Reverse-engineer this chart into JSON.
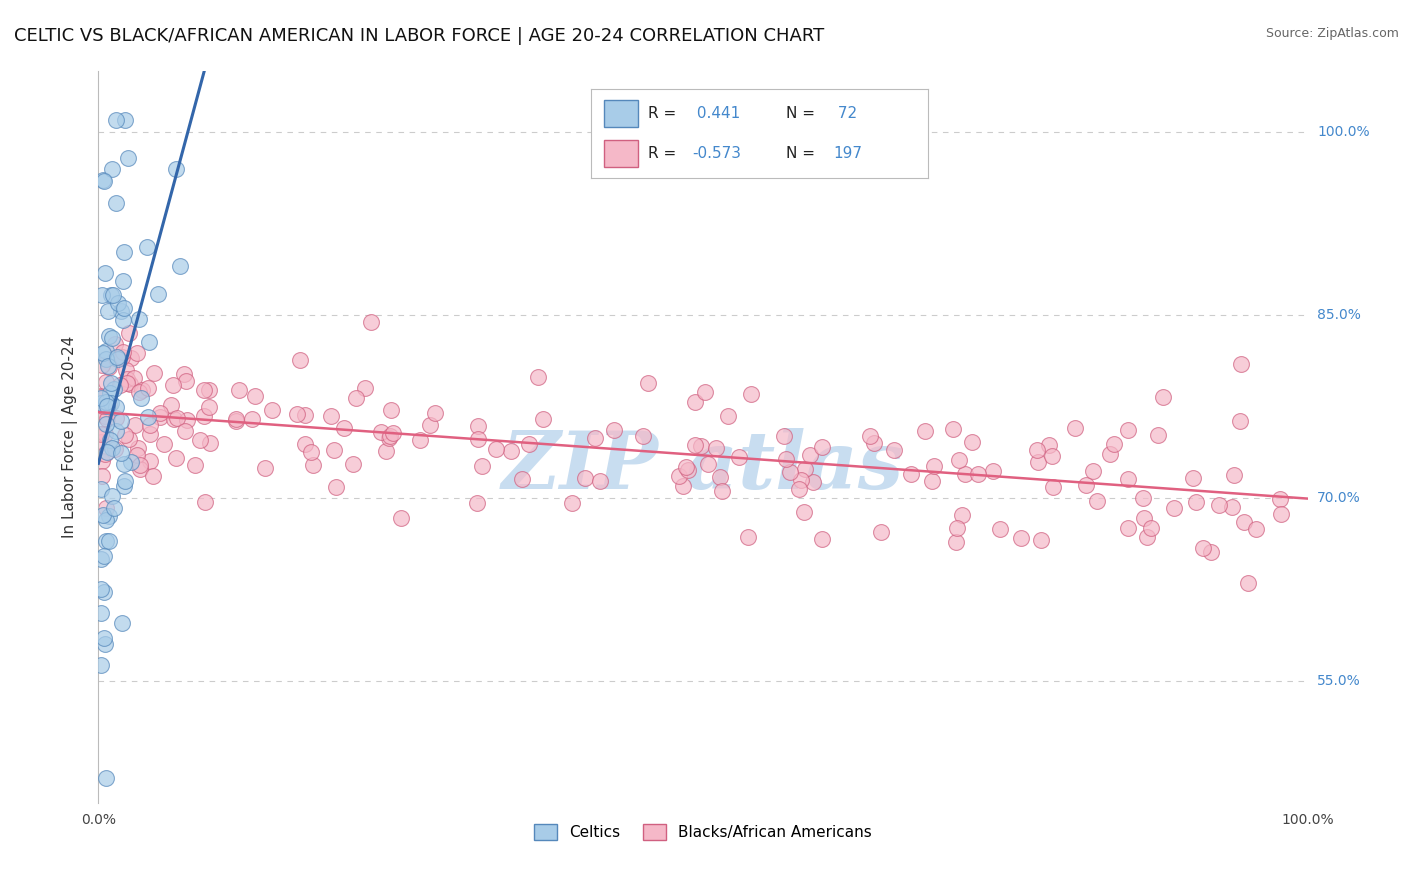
{
  "title": "CELTIC VS BLACK/AFRICAN AMERICAN IN LABOR FORCE | AGE 20-24 CORRELATION CHART",
  "source": "Source: ZipAtlas.com",
  "ylabel": "In Labor Force | Age 20-24",
  "xlim": [
    0.0,
    1.0
  ],
  "ylim": [
    0.45,
    1.05
  ],
  "yticks": [
    0.55,
    0.7,
    0.85,
    1.0
  ],
  "ytick_labels": [
    "55.0%",
    "70.0%",
    "85.0%",
    "100.0%"
  ],
  "xtick_labels_left": "0.0%",
  "xtick_labels_right": "100.0%",
  "r_blue": 0.441,
  "n_blue": 72,
  "r_pink": -0.573,
  "n_pink": 197,
  "color_blue": "#a8cce8",
  "color_pink": "#f5b8c8",
  "edge_blue": "#5588bb",
  "edge_pink": "#d06080",
  "line_blue": "#3366aa",
  "line_pink": "#e06080",
  "bg_color": "#ffffff",
  "grid_color": "#cccccc",
  "title_color": "#111111",
  "title_fontsize": 13,
  "axis_label_fontsize": 11,
  "tick_fontsize": 10,
  "right_tick_color": "#4488cc",
  "legend_text_r_color": "#111111",
  "legend_text_n_color": "#4488cc",
  "watermark_color": "#c8ddf0",
  "watermark_text": "ZIP atlas"
}
